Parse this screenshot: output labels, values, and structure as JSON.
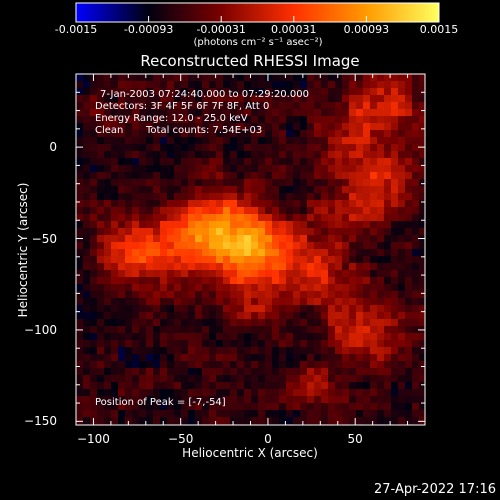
{
  "colorbar": {
    "colors": [
      "#0000ff",
      "#000010",
      "#7a0000",
      "#ff3000",
      "#ff9a00",
      "#ffff60"
    ],
    "min": -0.0015,
    "max": 0.0015,
    "tick_labels": [
      "-0.0015",
      "-0.00093",
      "-0.00031",
      "0.00031",
      "0.00093",
      "0.0015"
    ],
    "units_label": "(photons cm⁻² s⁻¹ asec⁻²)"
  },
  "chart_data": {
    "type": "heatmap",
    "title": "Reconstructed RHESSI Image",
    "xlabel": "Heliocentric X (arcsec)",
    "ylabel": "Heliocentric Y (arcsec)",
    "xlim": [
      -110,
      90
    ],
    "ylim": [
      -152,
      40
    ],
    "x_ticks": [
      "−100",
      "−50",
      "0",
      "50"
    ],
    "y_ticks": [
      "0",
      "−50",
      "−100",
      "−150"
    ],
    "x_tick_values": [
      -100,
      -50,
      0,
      50
    ],
    "y_tick_values": [
      0,
      -50,
      -100,
      -150
    ],
    "sources": [
      {
        "x": -7,
        "y": -54,
        "sx": 20,
        "sy": 12,
        "amp": 0.0014
      },
      {
        "x": -30,
        "y": -40,
        "sx": 14,
        "sy": 14,
        "amp": 0.0009
      },
      {
        "x": -60,
        "y": -55,
        "sx": 22,
        "sy": 14,
        "amp": 0.0008
      },
      {
        "x": -80,
        "y": -60,
        "sx": 12,
        "sy": 10,
        "amp": 0.0005
      },
      {
        "x": -10,
        "y": -80,
        "sx": 16,
        "sy": 12,
        "amp": 0.00065
      },
      {
        "x": 30,
        "y": -70,
        "sx": 14,
        "sy": 10,
        "amp": 0.0007
      },
      {
        "x": 55,
        "y": -100,
        "sx": 16,
        "sy": 14,
        "amp": 0.0008
      },
      {
        "x": 25,
        "y": -130,
        "sx": 12,
        "sy": 8,
        "amp": 0.0005
      },
      {
        "x": 65,
        "y": 20,
        "sx": 16,
        "sy": 14,
        "amp": 0.0008
      },
      {
        "x": 60,
        "y": -20,
        "sx": 16,
        "sy": 14,
        "amp": 0.00075
      },
      {
        "x": 42,
        "y": -40,
        "sx": 10,
        "sy": 10,
        "amp": 0.0004
      },
      {
        "x": -95,
        "y": 20,
        "sx": 6,
        "sy": 6,
        "amp": 0.0004
      },
      {
        "x": 40,
        "y": 5,
        "sx": 10,
        "sy": 10,
        "amp": 0.0003
      }
    ],
    "background_level": -0.0007,
    "info": {
      "time_range": "7-Jan-2003 07:24:40.000 to 07:29:20.000",
      "detectors": "Detectors: 3F 4F 5F 6F 7F 8F, Att 0",
      "energy_range": "Energy Range: 12.0 - 25.0 keV",
      "method": "Clean",
      "total_counts": "Total counts: 7.54E+03",
      "peak_position": "Position of Peak = [-7,-54]"
    }
  },
  "timestamp": "27-Apr-2022 17:16"
}
